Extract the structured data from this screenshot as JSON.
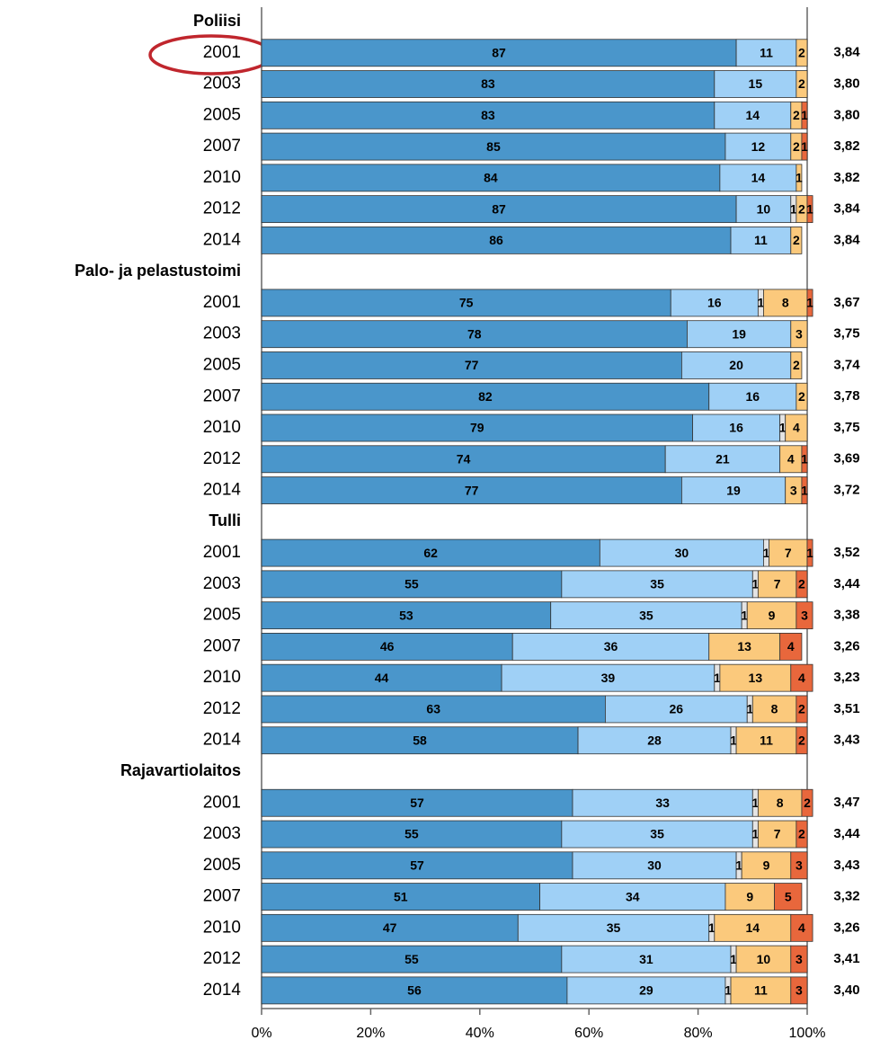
{
  "chart_data": {
    "type": "bar",
    "orientation": "horizontal",
    "stacked": true,
    "colors": [
      "#4a96cb",
      "#9fd0f6",
      "#e4e4e4",
      "#fbc97c",
      "#e8673c"
    ],
    "xlim": [
      0,
      100
    ],
    "xticks": [
      {
        "value": 0,
        "label": "0%"
      },
      {
        "value": 20,
        "label": "20%"
      },
      {
        "value": 40,
        "label": "40%"
      },
      {
        "value": 60,
        "label": "60%"
      },
      {
        "value": 80,
        "label": "80%"
      },
      {
        "value": 100,
        "label": "100%"
      }
    ],
    "groups": [
      {
        "name": "Poliisi",
        "rows": [
          {
            "year": "2001",
            "values": [
              87,
              11,
              null,
              2,
              null
            ],
            "mean": "3,84"
          },
          {
            "year": "2003",
            "values": [
              83,
              15,
              null,
              2,
              null
            ],
            "mean": "3,80"
          },
          {
            "year": "2005",
            "values": [
              83,
              14,
              null,
              2,
              1
            ],
            "mean": "3,80"
          },
          {
            "year": "2007",
            "values": [
              85,
              12,
              null,
              2,
              1
            ],
            "mean": "3,82"
          },
          {
            "year": "2010",
            "values": [
              84,
              14,
              null,
              1,
              null
            ],
            "mean": "3,82"
          },
          {
            "year": "2012",
            "values": [
              87,
              10,
              1,
              2,
              1
            ],
            "mean": "3,84"
          },
          {
            "year": "2014",
            "values": [
              86,
              11,
              null,
              2,
              null
            ],
            "mean": "3,84"
          }
        ]
      },
      {
        "name": "Palo- ja pelastustoimi",
        "rows": [
          {
            "year": "2001",
            "values": [
              75,
              16,
              1,
              8,
              1
            ],
            "mean": "3,67"
          },
          {
            "year": "2003",
            "values": [
              78,
              19,
              null,
              3,
              null
            ],
            "mean": "3,75"
          },
          {
            "year": "2005",
            "values": [
              77,
              20,
              null,
              2,
              null
            ],
            "mean": "3,74"
          },
          {
            "year": "2007",
            "values": [
              82,
              16,
              null,
              2,
              null
            ],
            "mean": "3,78"
          },
          {
            "year": "2010",
            "values": [
              79,
              16,
              1,
              4,
              null
            ],
            "mean": "3,75"
          },
          {
            "year": "2012",
            "values": [
              74,
              21,
              null,
              4,
              1
            ],
            "mean": "3,69"
          },
          {
            "year": "2014",
            "values": [
              77,
              19,
              null,
              3,
              1
            ],
            "mean": "3,72"
          }
        ]
      },
      {
        "name": "Tulli",
        "rows": [
          {
            "year": "2001",
            "values": [
              62,
              30,
              1,
              7,
              1
            ],
            "mean": "3,52"
          },
          {
            "year": "2003",
            "values": [
              55,
              35,
              1,
              7,
              2
            ],
            "mean": "3,44"
          },
          {
            "year": "2005",
            "values": [
              53,
              35,
              1,
              9,
              3
            ],
            "mean": "3,38"
          },
          {
            "year": "2007",
            "values": [
              46,
              36,
              null,
              13,
              4
            ],
            "mean": "3,26"
          },
          {
            "year": "2010",
            "values": [
              44,
              39,
              1,
              13,
              4
            ],
            "mean": "3,23"
          },
          {
            "year": "2012",
            "values": [
              63,
              26,
              1,
              8,
              2
            ],
            "mean": "3,51"
          },
          {
            "year": "2014",
            "values": [
              58,
              28,
              1,
              11,
              2
            ],
            "mean": "3,43"
          }
        ]
      },
      {
        "name": "Rajavartiolaitos",
        "rows": [
          {
            "year": "2001",
            "values": [
              57,
              33,
              1,
              8,
              2
            ],
            "mean": "3,47"
          },
          {
            "year": "2003",
            "values": [
              55,
              35,
              1,
              7,
              2
            ],
            "mean": "3,44"
          },
          {
            "year": "2005",
            "values": [
              57,
              30,
              1,
              9,
              3
            ],
            "mean": "3,43"
          },
          {
            "year": "2007",
            "values": [
              51,
              34,
              null,
              9,
              5
            ],
            "mean": "3,32"
          },
          {
            "year": "2010",
            "values": [
              47,
              35,
              1,
              14,
              4
            ],
            "mean": "3,26"
          },
          {
            "year": "2012",
            "values": [
              55,
              31,
              1,
              10,
              3
            ],
            "mean": "3,41"
          },
          {
            "year": "2014",
            "values": [
              56,
              29,
              1,
              11,
              3
            ],
            "mean": "3,40"
          }
        ]
      }
    ]
  }
}
